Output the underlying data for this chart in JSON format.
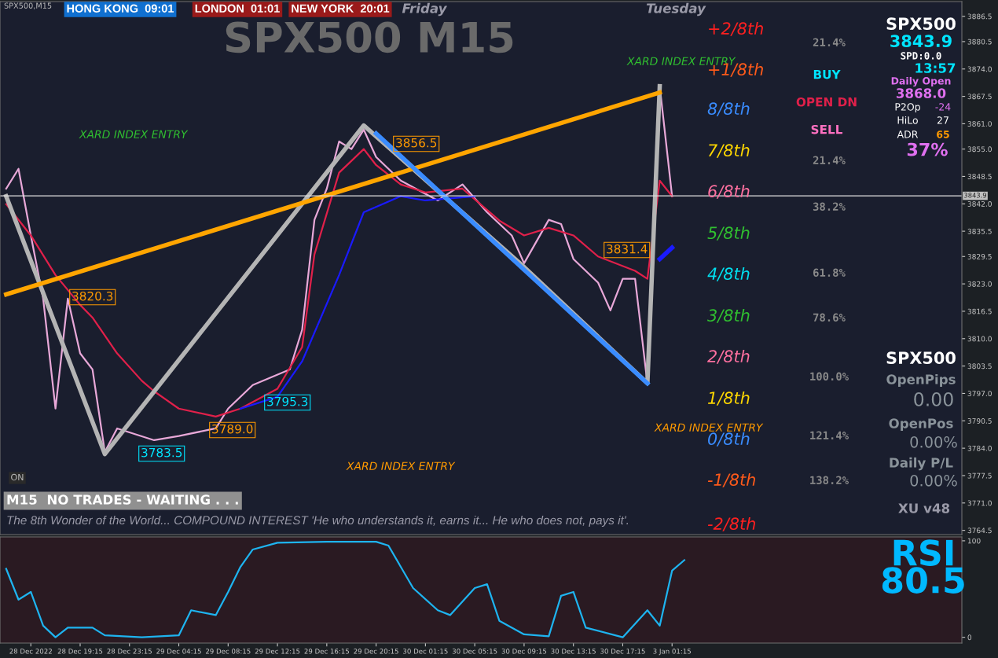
{
  "chart_data": [
    {
      "type": "line",
      "ylim": [
        3763.5,
        3890
      ],
      "categories": [
        null,
        null,
        null,
        null,
        null,
        null,
        null,
        null,
        null,
        null,
        null,
        null,
        null,
        null,
        null,
        null,
        null,
        null,
        null,
        null,
        null,
        null,
        null,
        null,
        null,
        null,
        null,
        null,
        null,
        null,
        null,
        null,
        null,
        null,
        null,
        null,
        null,
        null,
        null,
        null,
        null,
        null,
        null,
        null,
        null,
        null,
        null,
        null,
        null,
        null,
        null,
        null,
        null,
        null,
        null,
        null,
        null,
        null,
        null,
        null,
        null,
        null,
        null,
        null,
        null,
        null,
        null,
        null,
        null,
        null,
        null,
        null,
        null,
        null,
        null,
        null,
        null,
        null
      ],
      "yticks": [
        {
          "value": 3886.5,
          "label": "3886.5"
        },
        {
          "value": 3880.5,
          "label": "3880.5"
        },
        {
          "value": 3874.0,
          "label": "3874.0"
        },
        {
          "value": 3867.5,
          "label": "3867.5"
        },
        {
          "value": 3861.0,
          "label": "3861.0"
        },
        {
          "value": 3855.0,
          "label": "3855.0"
        },
        {
          "value": 3848.5,
          "label": "3848.5"
        },
        {
          "value": 3842.0,
          "label": "3842.0"
        },
        {
          "value": 3835.5,
          "label": "3835.5"
        },
        {
          "value": 3829.5,
          "label": "3829.5"
        },
        {
          "value": 3823.0,
          "label": "3823.0"
        },
        {
          "value": 3816.5,
          "label": "3816.5"
        },
        {
          "value": 3810.0,
          "label": "3810.0"
        },
        {
          "value": 3803.5,
          "label": "3803.5"
        },
        {
          "value": 3797.0,
          "label": "3797.0"
        },
        {
          "value": 3790.5,
          "label": "3790.5"
        },
        {
          "value": 3784.0,
          "label": "3784.0"
        },
        {
          "value": 3777.5,
          "label": "3777.5"
        },
        {
          "value": 3771.0,
          "label": "3771.0"
        },
        {
          "value": 3764.5,
          "label": "3764.5"
        }
      ],
      "grid": false,
      "legend": false,
      "marker": "none",
      "line_style": "solid",
      "ref_lines": [
        {
          "axis": "y",
          "value": 3843.9,
          "label": "3843.9",
          "color": "#e0e0e0"
        }
      ],
      "series": [
        {
          "color": "#e8a8d8",
          "values": [
            3845.6,
            3850.3,
            3834.5,
            3819.5,
            3793.4,
            3819.5,
            3806.5,
            3802.7,
            3783.1,
            3788.7,
            null,
            null,
            3785.9,
            null,
            3786.9,
            null,
            null,
            3788.7,
            3793.4,
            null,
            3799.0,
            null,
            null,
            3802.7,
            3812.1,
            3838.2,
            3845.6,
            3856.8,
            3855.0,
            3859.6,
            3853.1,
            null,
            3847.5,
            null,
            null,
            3842.8,
            null,
            3846.6,
            null,
            3840.0,
            null,
            3834.5,
            3827.9,
            null,
            3838.2,
            3837.2,
            3828.9,
            null,
            3823.3,
            3816.7,
            3824.2,
            3824.2,
            3799.4,
            3869.9,
            3843.8,
            null,
            null,
            null,
            null,
            null,
            null,
            null,
            null,
            null,
            null,
            null,
            null,
            null,
            null,
            null,
            null,
            null,
            null,
            null,
            null,
            null,
            null,
            null
          ]
        },
        {
          "color": "#e0204a",
          "values": [
            3841.9,
            null,
            3834.5,
            null,
            3825.1,
            null,
            3818.0,
            3815.0,
            null,
            3806.5,
            null,
            3800.0,
            3797.5,
            null,
            3793.4,
            null,
            null,
            3791.5,
            null,
            3793.4,
            null,
            null,
            3798.1,
            null,
            3808.0,
            3830.0,
            null,
            3849.4,
            null,
            3855.0,
            3851.2,
            null,
            3846.6,
            null,
            3844.7,
            null,
            null,
            3845.6,
            null,
            null,
            3838.0,
            null,
            3834.5,
            null,
            3836.3,
            null,
            3834.5,
            null,
            3829.5,
            null,
            null,
            3826.1,
            3824.2,
            3847.5,
            3843.8,
            null,
            null,
            null,
            null,
            null,
            null,
            null,
            null,
            null,
            null,
            null,
            null,
            null,
            null,
            null,
            null,
            null,
            null,
            null,
            null,
            null,
            null,
            null
          ]
        },
        {
          "color": "#1a1aff",
          "values": [
            null,
            null,
            null,
            null,
            null,
            null,
            null,
            null,
            null,
            null,
            null,
            null,
            null,
            null,
            null,
            null,
            null,
            null,
            null,
            3793.4,
            null,
            null,
            3796.2,
            null,
            3804.6,
            null,
            null,
            3825.1,
            null,
            3840.0,
            null,
            null,
            3843.8,
            null,
            3842.8,
            null,
            null,
            null,
            3843.8,
            null,
            null,
            null,
            null,
            null,
            null,
            null,
            null,
            null,
            null,
            null,
            null,
            null,
            null,
            null,
            null,
            null,
            null,
            null,
            null,
            null,
            null,
            null,
            null,
            null,
            null,
            null,
            null,
            null,
            null,
            null,
            null,
            null,
            null,
            null,
            null,
            null,
            null,
            null
          ]
        },
        {
          "color": "#1a1aff",
          "values": [
            null,
            null,
            null,
            null,
            null,
            null,
            null,
            null,
            null,
            null,
            null,
            null,
            null,
            null,
            null,
            null,
            null,
            null,
            null,
            null,
            null,
            null,
            null,
            null,
            null,
            null,
            null,
            null,
            null,
            null,
            null,
            null,
            null,
            null,
            null,
            null,
            null,
            null,
            null,
            null,
            null,
            null,
            null,
            null,
            null,
            null,
            null,
            null,
            null,
            null,
            null,
            null,
            null,
            3828.9,
            3831.6,
            null,
            null,
            null,
            null,
            null,
            null,
            null,
            null,
            null,
            null,
            null,
            null,
            null,
            null,
            null,
            null,
            null,
            null,
            null,
            null,
            null,
            null,
            null
          ]
        },
        {
          "color": "#b4b4b4",
          "values": [
            3843.8,
            null,
            null,
            null,
            null,
            null,
            null,
            null,
            3782.6,
            null,
            null,
            null,
            null,
            null,
            null,
            null,
            null,
            null,
            null,
            null,
            null,
            null,
            null,
            null,
            null,
            null,
            null,
            null,
            null,
            3860.6,
            null,
            null,
            null,
            null,
            null,
            null,
            null,
            null,
            null,
            null,
            null,
            null,
            3827.0,
            null,
            null,
            null,
            null,
            null,
            null,
            null,
            null,
            null,
            3799.4,
            3869.9,
            null,
            null,
            null,
            null,
            null,
            null,
            null,
            null,
            null,
            null,
            null,
            null,
            null,
            null,
            null,
            null,
            null,
            null,
            null,
            null,
            null,
            null,
            null,
            null
          ]
        },
        {
          "color": "#ffa500",
          "values": [
            3820.5,
            null,
            null,
            null,
            null,
            null,
            null,
            null,
            null,
            null,
            null,
            null,
            null,
            null,
            null,
            null,
            null,
            null,
            null,
            null,
            null,
            null,
            null,
            null,
            null,
            null,
            null,
            null,
            null,
            null,
            null,
            null,
            null,
            null,
            null,
            null,
            null,
            null,
            null,
            null,
            null,
            null,
            null,
            null,
            null,
            null,
            null,
            null,
            null,
            null,
            null,
            null,
            null,
            3868.4,
            null,
            null,
            null,
            null,
            null,
            null,
            null,
            null,
            null,
            null,
            null,
            null,
            null,
            null,
            null,
            null,
            null,
            null,
            null,
            null,
            null,
            null,
            null,
            null
          ]
        },
        {
          "color": "#3a8cff",
          "values": [
            null,
            null,
            null,
            null,
            null,
            null,
            null,
            null,
            null,
            null,
            null,
            null,
            null,
            null,
            null,
            null,
            null,
            null,
            null,
            null,
            null,
            null,
            null,
            null,
            null,
            null,
            null,
            null,
            null,
            null,
            3858.7,
            null,
            null,
            null,
            null,
            null,
            null,
            null,
            null,
            null,
            null,
            null,
            null,
            null,
            null,
            null,
            null,
            null,
            null,
            null,
            null,
            null,
            3799.4,
            null,
            null,
            null,
            null,
            null,
            null,
            null,
            null,
            null,
            null,
            null,
            null,
            null,
            null,
            null,
            null,
            null,
            null,
            null,
            null,
            null,
            null,
            null,
            null,
            null
          ]
        }
      ],
      "annotations": [
        "SPX500,M15",
        "HONG KONG  09:01",
        "LONDON  01:01",
        "NEW YORK  20:01",
        "Friday",
        "Tuesday",
        "SPX500 M15",
        "BUY",
        "OPEN DN",
        "SELL",
        "SPX500",
        "3843.9",
        "SPD:0.0",
        "13:57",
        "Daily Open",
        "3868.0",
        "P2Op",
        "-24",
        "HiLo",
        "27",
        "ADR",
        "65",
        "37%",
        "SPX500",
        "OpenPips",
        "0.00",
        "OpenPos",
        "0.00%",
        "Daily P/L",
        "0.00%",
        "XU v48",
        "RSI",
        "80.5",
        "ON",
        "M15  NO TRADES - WAITING . . .",
        "The 8th Wonder of the World... COMPOUND INTEREST 'He who understands it, earns it... He who does not, pays it'.",
        "3856.5",
        "3831.4",
        "3820.3",
        "3795.3",
        "3789.0",
        "3783.5",
        "XARD INDEX ENTRY",
        "XARD INDEX ENTRY",
        "XARD INDEX ENTRY",
        "XARD INDEX ENTRY",
        "+2/8th",
        "+1/8th",
        "8/8th",
        "7/8th",
        "6/8th",
        "5/8th",
        "4/8th",
        "3/8th",
        "2/8th",
        "1/8th",
        "0/8th",
        "-1/8th",
        "-2/8th",
        "21.4%",
        "21.4%",
        "38.2%",
        "61.8%",
        "78.6%",
        "100.0%",
        "121.4%",
        "138.2%"
      ]
    },
    {
      "type": "line",
      "ylim": [
        -6,
        104
      ],
      "yticks": [
        0,
        100
      ],
      "categories": [
        null,
        null,
        "28 Dec 2022",
        null,
        null,
        null,
        "28 Dec 19:15",
        null,
        null,
        null,
        "28 Dec 23:15",
        null,
        null,
        null,
        "29 Dec 04:15",
        null,
        null,
        null,
        "29 Dec 08:15",
        null,
        null,
        null,
        "29 Dec 12:15",
        null,
        null,
        null,
        "29 Dec 16:15",
        null,
        null,
        null,
        "29 Dec 20:15",
        null,
        null,
        null,
        "30 Dec 01:15",
        null,
        null,
        null,
        "30 Dec 05:15",
        null,
        null,
        null,
        "30 Dec 09:15",
        null,
        null,
        null,
        "30 Dec 13:15",
        null,
        null,
        null,
        "30 Dec 17:15",
        null,
        null,
        null,
        "3 Jan 01:15",
        null,
        null,
        null,
        null,
        null,
        null,
        null,
        null,
        null,
        null,
        null,
        null,
        null,
        null,
        null,
        null,
        null,
        null,
        null,
        null,
        null,
        null,
        null
      ],
      "grid": false,
      "legend": false,
      "marker": "none",
      "line_style": "solid",
      "series": [
        {
          "color": "#1eb4f0",
          "values": [
            71,
            39,
            47,
            12,
            0,
            10,
            null,
            10,
            2,
            null,
            null,
            0,
            null,
            null,
            2,
            28,
            null,
            23,
            47,
            73,
            91,
            null,
            98,
            null,
            null,
            null,
            99,
            null,
            null,
            null,
            99,
            95,
            null,
            51,
            null,
            28,
            23,
            null,
            51,
            55,
            17,
            null,
            3,
            null,
            1,
            43,
            47,
            10,
            null,
            null,
            0,
            null,
            28,
            12,
            69,
            80,
            null,
            null,
            null,
            null,
            null,
            null,
            null,
            null,
            null,
            null,
            null,
            null,
            null,
            null,
            null,
            null,
            null,
            null,
            null,
            null,
            null,
            null
          ]
        }
      ]
    }
  ]
}
